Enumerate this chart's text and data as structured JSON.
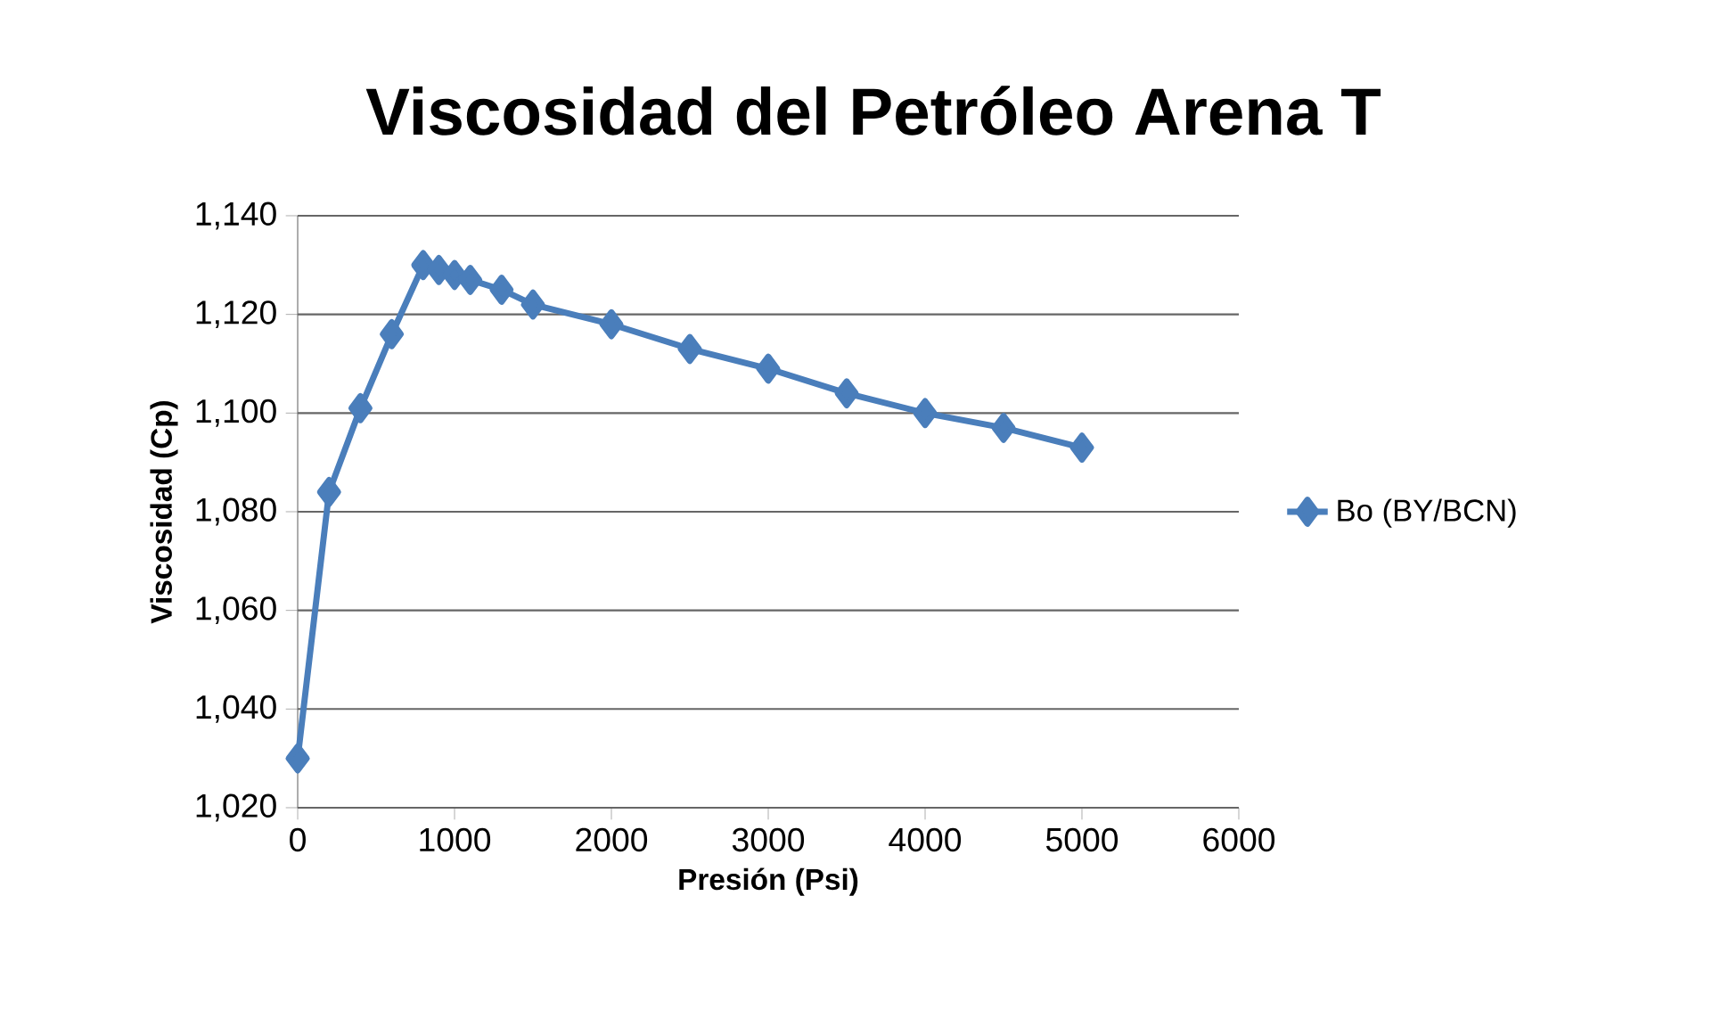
{
  "chart_data": {
    "type": "line",
    "title": "Viscosidad del Petróleo Arena T",
    "xlabel": "Presión (Psi)",
    "ylabel": "Viscosidad (Cp)",
    "x": [
      0,
      200,
      400,
      600,
      800,
      900,
      1000,
      1100,
      1300,
      1500,
      2000,
      2500,
      3000,
      3500,
      4000,
      4500,
      5000
    ],
    "series": [
      {
        "name": "Bo (BY/BCN)",
        "color": "#4a7ebb",
        "values": [
          1030,
          1084,
          1101,
          1116,
          1130,
          1129,
          1128,
          1127,
          1125,
          1122,
          1118,
          1113,
          1109,
          1104,
          1100,
          1097,
          1093
        ]
      }
    ],
    "xlim": [
      0,
      6000
    ],
    "xticks": [
      0,
      1000,
      2000,
      3000,
      4000,
      5000,
      6000
    ],
    "ylim": [
      1020,
      1140
    ],
    "yticks": [
      {
        "value": 1020,
        "label": "1,020"
      },
      {
        "value": 1040,
        "label": "1,040"
      },
      {
        "value": 1060,
        "label": "1,060"
      },
      {
        "value": 1080,
        "label": "1,080"
      },
      {
        "value": 1100,
        "label": "1,100"
      },
      {
        "value": 1120,
        "label": "1,120"
      },
      {
        "value": 1140,
        "label": "1,140"
      }
    ],
    "grid": "y",
    "legend": "right",
    "marker": "diamond",
    "line_style": "solid"
  }
}
